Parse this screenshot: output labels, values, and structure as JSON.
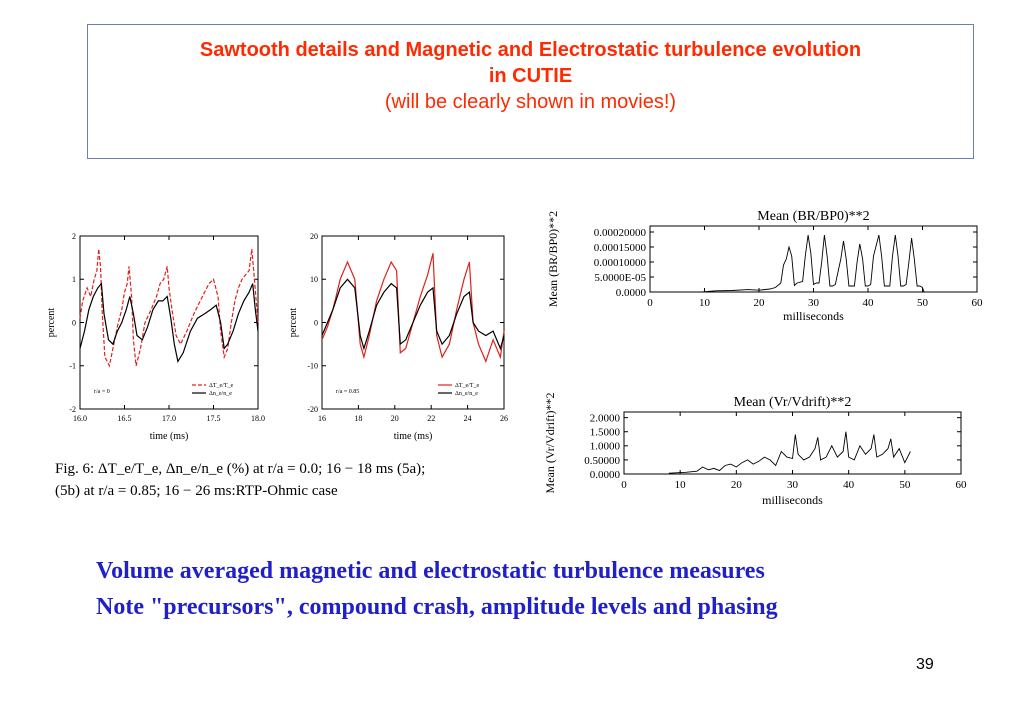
{
  "slide": {
    "title_line1": "Sawtooth details and Magnetic and Electrostatic turbulence evolution",
    "title_line2": "in CUTIE",
    "subtitle": "(will be clearly shown in movies!)",
    "conclusion_line1": "Volume averaged magnetic and electrostatic turbulence measures",
    "conclusion_line2": "Note \"precursors\", compound crash, amplitude levels and phasing",
    "page_number": "39",
    "colors": {
      "title": "#ff2a00",
      "conclusion": "#2020c8",
      "red_series": "#e0201c",
      "black_series": "#000000"
    }
  },
  "figure_caption": {
    "line1": "Fig. 6: ΔT_e/T_e, Δn_e/n_e (%) at r/a = 0.0; 16 − 18 ms (5a);",
    "line2": "(5b) at r/a = 0.85; 16 − 26 ms:RTP-Ohmic case"
  },
  "chart_data": [
    {
      "type": "line",
      "panel": "5a",
      "xlabel": "time (ms)",
      "ylabel": "percent",
      "annotation": "r/a = 0",
      "x_ticks": [
        "16.0",
        "16.5",
        "17.0",
        "17.5",
        "18.0"
      ],
      "y_ticks": [
        "2",
        "1",
        "0",
        "-1",
        "-2"
      ],
      "xlim": [
        16.0,
        18.0
      ],
      "ylim": [
        -2,
        2
      ],
      "series": [
        {
          "name": "ΔT_e/T_e",
          "color": "#e0201c",
          "dash": "4,2",
          "x": [
            16.0,
            16.03,
            16.08,
            16.12,
            16.16,
            16.19,
            16.21,
            16.23,
            16.25,
            16.28,
            16.33,
            16.38,
            16.43,
            16.47,
            16.5,
            16.53,
            16.55,
            16.58,
            16.6,
            16.63,
            16.68,
            16.73,
            16.8,
            16.86,
            16.9,
            16.94,
            16.98,
            17.0,
            17.04,
            17.08,
            17.13,
            17.2,
            17.28,
            17.35,
            17.4,
            17.45,
            17.5,
            17.55,
            17.58,
            17.62,
            17.66,
            17.7,
            17.74,
            17.78,
            17.82,
            17.86,
            17.9,
            17.93,
            17.96,
            18.0
          ],
          "y": [
            0.1,
            0.5,
            0.8,
            0.6,
            1.0,
            1.2,
            1.7,
            1.3,
            0.2,
            -0.8,
            -1.0,
            -0.5,
            0.0,
            0.3,
            0.7,
            0.9,
            1.3,
            0.6,
            -0.4,
            -1.0,
            -0.6,
            0.0,
            0.3,
            0.6,
            0.9,
            1.0,
            1.3,
            0.8,
            0.2,
            -0.3,
            -0.5,
            -0.2,
            0.2,
            0.5,
            0.7,
            0.9,
            1.0,
            0.6,
            -0.2,
            -0.8,
            -0.6,
            0.0,
            0.5,
            0.8,
            1.0,
            1.1,
            1.2,
            1.7,
            1.0,
            0.0
          ]
        },
        {
          "name": "Δn_e/n_e",
          "color": "#000000",
          "dash": "",
          "x": [
            16.0,
            16.05,
            16.1,
            16.15,
            16.2,
            16.24,
            16.27,
            16.32,
            16.37,
            16.42,
            16.47,
            16.52,
            16.56,
            16.6,
            16.64,
            16.7,
            16.76,
            16.82,
            16.88,
            16.93,
            16.98,
            17.02,
            17.06,
            17.1,
            17.16,
            17.24,
            17.32,
            17.4,
            17.47,
            17.53,
            17.58,
            17.62,
            17.66,
            17.72,
            17.78,
            17.84,
            17.9,
            17.94,
            17.97,
            18.0
          ],
          "y": [
            -0.6,
            -0.2,
            0.3,
            0.6,
            0.8,
            0.9,
            0.2,
            -0.4,
            -0.5,
            -0.2,
            0.0,
            0.3,
            0.6,
            0.2,
            -0.3,
            -0.4,
            -0.1,
            0.3,
            0.5,
            0.5,
            0.6,
            0.1,
            -0.5,
            -0.9,
            -0.7,
            -0.2,
            0.1,
            0.2,
            0.3,
            0.4,
            0.0,
            -0.6,
            -0.5,
            -0.2,
            0.2,
            0.5,
            0.7,
            0.9,
            0.3,
            -0.2
          ]
        }
      ]
    },
    {
      "type": "line",
      "panel": "5b",
      "xlabel": "time (ms)",
      "ylabel": "percent",
      "annotation": "r/a = 0.85",
      "x_ticks": [
        "16",
        "18",
        "20",
        "22",
        "24",
        "26"
      ],
      "y_ticks": [
        "20",
        "10",
        "0",
        "-10",
        "-20"
      ],
      "xlim": [
        16,
        26
      ],
      "ylim": [
        -20,
        20
      ],
      "series": [
        {
          "name": "ΔT_e/T_e",
          "color": "#e0201c",
          "dash": "",
          "x": [
            16.0,
            16.3,
            16.6,
            17.0,
            17.4,
            17.8,
            18.1,
            18.3,
            18.6,
            19.0,
            19.4,
            19.8,
            20.1,
            20.3,
            20.6,
            21.0,
            21.4,
            21.8,
            22.1,
            22.3,
            22.6,
            23.0,
            23.4,
            23.8,
            24.1,
            24.3,
            24.6,
            25.0,
            25.4,
            25.8,
            26.0
          ],
          "y": [
            -4,
            -1,
            3,
            10,
            14,
            10,
            -5,
            -8,
            -3,
            5,
            10,
            14,
            12,
            -7,
            -6,
            0,
            6,
            11,
            16,
            -3,
            -8,
            -5,
            3,
            10,
            14,
            0,
            -5,
            -9,
            -4,
            -8,
            -2
          ]
        },
        {
          "name": "Δn_e/n_e",
          "color": "#000000",
          "dash": "",
          "x": [
            16.0,
            16.3,
            16.6,
            17.0,
            17.4,
            17.8,
            18.1,
            18.3,
            18.6,
            19.0,
            19.4,
            19.8,
            20.1,
            20.3,
            20.6,
            21.0,
            21.4,
            21.8,
            22.1,
            22.3,
            22.6,
            23.0,
            23.4,
            23.8,
            24.1,
            24.3,
            24.6,
            25.0,
            25.4,
            25.8,
            26.0
          ],
          "y": [
            -3,
            0,
            3,
            8,
            10,
            8,
            -3,
            -6,
            -2,
            4,
            7,
            9,
            8,
            -5,
            -4,
            0,
            4,
            7,
            8,
            -2,
            -5,
            -3,
            2,
            6,
            7,
            0,
            -2,
            -3,
            -2,
            -6,
            -3
          ]
        }
      ]
    },
    {
      "type": "line",
      "panel": "magnetic",
      "title": "Mean (BR/BP0)**2",
      "xlabel": "milliseconds",
      "ylabel": "Mean (BR/BP0)**2",
      "x_ticks": [
        "0",
        "10",
        "20",
        "30",
        "40",
        "50",
        "60"
      ],
      "y_ticks": [
        "0.00020000",
        "0.00015000",
        "0.00010000",
        "5.0000E-05",
        "0.0000"
      ],
      "xlim": [
        0,
        60
      ],
      "ylim": [
        0,
        0.00022
      ],
      "series": [
        {
          "name": "",
          "color": "#000000",
          "x": [
            9.5,
            12,
            15,
            18,
            20,
            22,
            23,
            24,
            24.5,
            25,
            25.5,
            26,
            26.5,
            27,
            28,
            28.5,
            29,
            29.5,
            30,
            30.5,
            31,
            31.5,
            32,
            32.5,
            33,
            33.5,
            34,
            35,
            35.5,
            36,
            36.5,
            37,
            37.5,
            38,
            38.5,
            39,
            39.5,
            40,
            40.5,
            41,
            42,
            42.5,
            43,
            43.5,
            44,
            44.5,
            45,
            45.5,
            46,
            46.5,
            47,
            47.5,
            48,
            48.5,
            49,
            49.5,
            50,
            50.3
          ],
          "y": [
            0.0,
            4e-06,
            5e-06,
            8e-06,
            6e-06,
            1e-05,
            1.5e-05,
            3e-05,
            9e-05,
            0.00011,
            0.00015,
            0.00012,
            2.2e-05,
            3e-05,
            3.5e-05,
            0.00012,
            0.00019,
            0.00013,
            2.5e-05,
            3e-05,
            3e-05,
            0.0001,
            0.00019,
            0.00012,
            2e-05,
            2e-05,
            2.5e-05,
            0.00011,
            0.00017,
            0.00011,
            2e-05,
            2e-05,
            2e-05,
            0.0001,
            0.00016,
            0.00011,
            2e-05,
            2e-05,
            2.5e-05,
            0.00012,
            0.00019,
            0.00012,
            2e-05,
            2e-05,
            2e-05,
            0.00012,
            0.00019,
            0.00012,
            2e-05,
            2e-05,
            2.5e-05,
            0.0001,
            0.00018,
            0.00011,
            2e-05,
            2e-05,
            1.5e-05,
            0.0
          ]
        }
      ]
    },
    {
      "type": "line",
      "panel": "electrostatic",
      "title": "Mean (Vr/Vdrift)**2",
      "xlabel": "milliseconds",
      "ylabel": "Mean (Vr/Vdrift)**2",
      "x_ticks": [
        "0",
        "10",
        "20",
        "30",
        "40",
        "50",
        "60"
      ],
      "y_ticks": [
        "2.0000",
        "1.5000",
        "1.0000",
        "0.50000",
        "0.0000"
      ],
      "xlim": [
        0,
        60
      ],
      "ylim": [
        0,
        2.2
      ],
      "series": [
        {
          "name": "",
          "color": "#000000",
          "x": [
            8,
            11,
            13,
            14,
            15,
            16,
            17,
            18,
            19,
            20,
            21,
            22,
            23,
            24,
            25,
            26,
            27,
            28,
            29,
            30,
            30.5,
            31,
            32,
            33,
            34,
            34.5,
            35,
            36,
            37,
            38,
            39,
            39.5,
            40,
            41,
            42,
            43,
            44,
            44.5,
            45,
            46,
            47,
            47.5,
            48,
            49,
            50,
            51
          ],
          "y": [
            0.03,
            0.06,
            0.1,
            0.25,
            0.15,
            0.2,
            0.12,
            0.3,
            0.35,
            0.25,
            0.4,
            0.5,
            0.35,
            0.45,
            0.6,
            0.5,
            0.3,
            0.8,
            0.6,
            0.55,
            1.4,
            0.7,
            0.5,
            0.6,
            0.9,
            1.3,
            0.5,
            0.6,
            1.0,
            0.6,
            0.8,
            1.5,
            0.6,
            0.5,
            1.0,
            0.7,
            0.9,
            1.4,
            0.6,
            0.7,
            0.9,
            1.25,
            0.6,
            0.9,
            0.4,
            0.8
          ]
        }
      ]
    }
  ]
}
